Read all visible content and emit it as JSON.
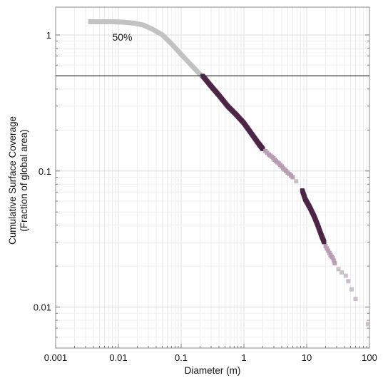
{
  "chart_data": {
    "type": "scatter",
    "xlabel": "Diameter (m)",
    "ylabel_lines": [
      "Cumulative Surface Coverage",
      "(Fraction of global area)"
    ],
    "xscale": "log",
    "yscale": "log",
    "xlim": [
      0.001,
      100
    ],
    "ylim": [
      0.005,
      1.6
    ],
    "x_ticks": [
      {
        "value": 0.001,
        "label": "0.001"
      },
      {
        "value": 0.01,
        "label": "0.01"
      },
      {
        "value": 0.1,
        "label": "0.1"
      },
      {
        "value": 1,
        "label": "1"
      },
      {
        "value": 10,
        "label": "10"
      },
      {
        "value": 100,
        "label": "100"
      }
    ],
    "y_ticks": [
      {
        "value": 1,
        "label": "1"
      },
      {
        "value": 0.1,
        "label": "0.1"
      },
      {
        "value": 0.01,
        "label": "0.01"
      }
    ],
    "grid": true,
    "reference_line": {
      "y": 0.5,
      "label": "50%",
      "label_at_x": 0.008,
      "label_at_y": 1.0,
      "color": "#333333"
    },
    "series": [
      {
        "style": "thick-line",
        "color": "#c2c2c2",
        "x": [
          0.0033,
          0.005,
          0.008,
          0.012,
          0.018,
          0.025,
          0.035,
          0.05,
          0.07,
          0.1,
          0.14,
          0.18,
          0.21
        ],
        "y": [
          1.25,
          1.25,
          1.25,
          1.24,
          1.22,
          1.18,
          1.1,
          1.0,
          0.86,
          0.72,
          0.61,
          0.54,
          0.5
        ]
      },
      {
        "style": "dense-squares",
        "color": "#4d2547",
        "x": [
          0.22,
          0.3,
          0.4,
          0.55,
          0.75,
          1.0,
          1.3,
          1.7,
          2.0
        ],
        "y": [
          0.5,
          0.42,
          0.36,
          0.3,
          0.26,
          0.225,
          0.19,
          0.16,
          0.145
        ]
      },
      {
        "style": "sparse-squares",
        "color": "#b69bb2",
        "x": [
          2.2,
          2.5,
          2.8,
          3.1,
          3.4,
          3.8,
          4.2,
          4.7,
          5.3,
          6.0
        ],
        "y": [
          0.14,
          0.132,
          0.127,
          0.121,
          0.116,
          0.111,
          0.105,
          0.1,
          0.095,
          0.09
        ]
      },
      {
        "style": "squares",
        "color": "#c7bcc6",
        "x": [
          6.8
        ],
        "y": [
          0.084
        ]
      },
      {
        "style": "dense-squares",
        "color": "#4d2547",
        "x": [
          8.5,
          9.5,
          11,
          13,
          15,
          17,
          19
        ],
        "y": [
          0.072,
          0.062,
          0.055,
          0.047,
          0.04,
          0.034,
          0.03
        ]
      },
      {
        "style": "sparse-squares",
        "color": "#b69bb2",
        "x": [
          20,
          22,
          24,
          26,
          28
        ],
        "y": [
          0.028,
          0.026,
          0.024,
          0.023,
          0.021
        ]
      },
      {
        "style": "squares",
        "color": "#c7bcc6",
        "x": [
          32,
          36,
          42,
          46,
          52,
          60,
          95
        ],
        "y": [
          0.019,
          0.018,
          0.017,
          0.0155,
          0.0135,
          0.0115,
          0.0075
        ]
      }
    ]
  }
}
